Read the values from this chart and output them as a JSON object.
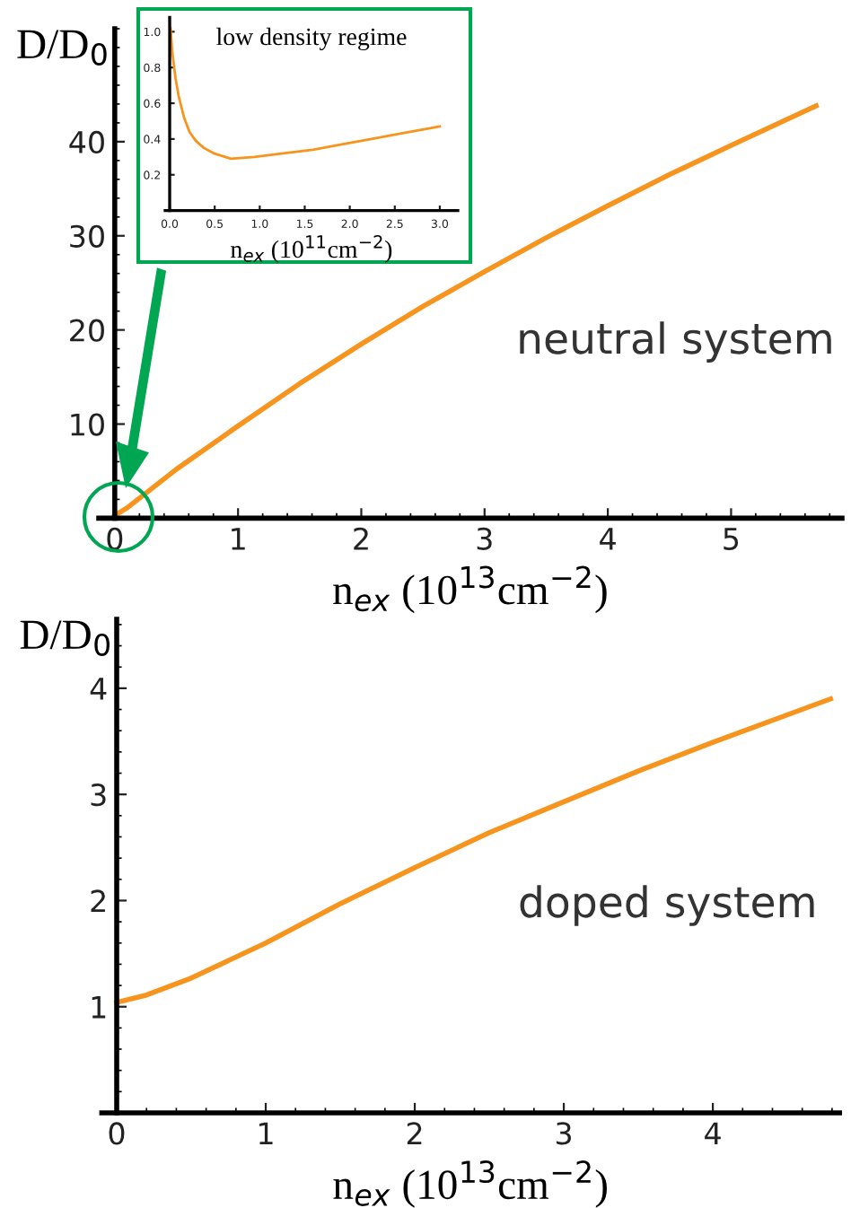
{
  "chart_data": [
    {
      "type": "line",
      "xlabel": "n$_{ex}$ (10$^{13}$cm$^{−2}$)",
      "ylabel": "D/D$_{0}$",
      "annotations": [
        "neutral system"
      ],
      "xlim": [
        -0.13,
        5.9
      ],
      "ylim": [
        0,
        52
      ],
      "xticks": [
        0,
        1,
        2,
        3,
        4,
        5
      ],
      "yticks": [
        10,
        20,
        30,
        40
      ],
      "series": [
        {
          "color": "#f7941d",
          "x": [
            0,
            0.1,
            0.5,
            1,
            1.5,
            2,
            2.5,
            3,
            3.5,
            4,
            4.5,
            5,
            5.69
          ],
          "values": [
            0.3,
            1.1,
            5.2,
            9.8,
            14.3,
            18.5,
            22.5,
            26.2,
            29.8,
            33.2,
            36.5,
            39.6,
            43.8
          ]
        }
      ]
    },
    {
      "type": "line",
      "title": "low density regime",
      "xlabel": "n$_{ex}$ (10$^{11}$cm$^{−2}$)",
      "xlim": [
        -0.05,
        3.2
      ],
      "ylim": [
        0,
        1.08
      ],
      "xticks": [
        {
          "value": 0,
          "label": "0.0"
        },
        {
          "value": 0.5,
          "label": "0.5"
        },
        {
          "value": 1,
          "label": "1.0"
        },
        {
          "value": 1.5,
          "label": "1.5"
        },
        {
          "value": 2,
          "label": "2.0"
        },
        {
          "value": 2.5,
          "label": "2.5"
        },
        {
          "value": 3,
          "label": "3.0"
        }
      ],
      "yticks": [
        0.2,
        0.4,
        0.6,
        0.8,
        {
          "value": 1,
          "label": "1.0"
        }
      ],
      "series": [
        {
          "color": "#f7941d",
          "x": [
            0.01,
            0.03,
            0.065,
            0.1,
            0.16,
            0.22,
            0.29,
            0.38,
            0.49,
            0.68,
            0.94,
            1.26,
            1.59,
            1.91,
            2.24,
            2.56,
            3.0
          ],
          "values": [
            1.02,
            0.88,
            0.74,
            0.64,
            0.52,
            0.44,
            0.39,
            0.35,
            0.32,
            0.29,
            0.3,
            0.32,
            0.34,
            0.37,
            0.4,
            0.43,
            0.47
          ]
        }
      ]
    },
    {
      "type": "line",
      "xlabel": "n$_{ex}$ (10$^{13}$cm$^{−2}$)",
      "ylabel": "D/D$_{0}$",
      "annotations": [
        "doped system"
      ],
      "xlim": [
        -0.1,
        4.85
      ],
      "ylim": [
        0,
        4.65
      ],
      "xticks": [
        0,
        1,
        2,
        3,
        4
      ],
      "yticks": [
        1,
        2,
        3,
        4
      ],
      "series": [
        {
          "color": "#f7941d",
          "x": [
            0,
            0.2,
            0.5,
            1,
            1.5,
            2,
            2.5,
            3,
            3.5,
            4,
            4.79
          ],
          "values": [
            1.04,
            1.11,
            1.27,
            1.6,
            1.97,
            2.31,
            2.64,
            2.93,
            3.22,
            3.49,
            3.9
          ]
        }
      ]
    }
  ]
}
